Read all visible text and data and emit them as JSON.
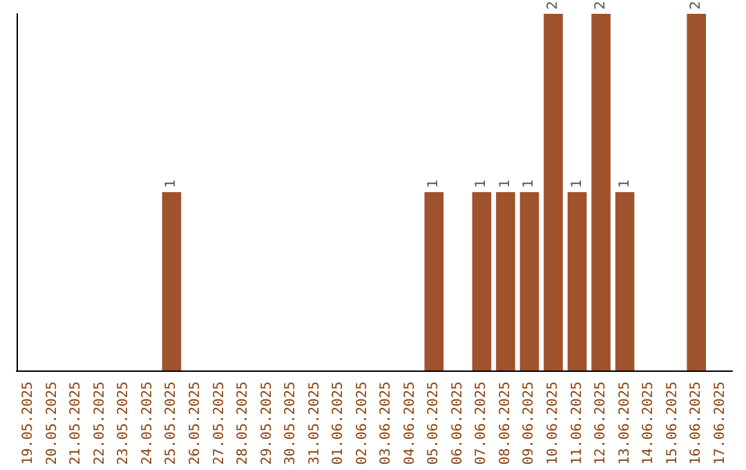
{
  "chart_data": {
    "type": "bar",
    "categories": [
      "19.05.2025",
      "20.05.2025",
      "21.05.2025",
      "22.05.2025",
      "23.05.2025",
      "24.05.2025",
      "25.05.2025",
      "26.05.2025",
      "27.05.2025",
      "28.05.2025",
      "29.05.2025",
      "30.05.2025",
      "31.05.2025",
      "01.06.2025",
      "02.06.2025",
      "03.06.2025",
      "04.06.2025",
      "05.06.2025",
      "06.06.2025",
      "07.06.2025",
      "08.06.2025",
      "09.06.2025",
      "10.06.2025",
      "11.06.2025",
      "12.06.2025",
      "13.06.2025",
      "14.06.2025",
      "15.06.2025",
      "16.06.2025",
      "17.06.2025"
    ],
    "values": [
      0,
      0,
      0,
      0,
      0,
      0,
      1,
      0,
      0,
      0,
      0,
      0,
      0,
      0,
      0,
      0,
      0,
      1,
      0,
      1,
      1,
      1,
      2,
      1,
      2,
      1,
      0,
      0,
      2,
      0
    ],
    "value_labels": [
      null,
      null,
      null,
      null,
      null,
      null,
      "1",
      null,
      null,
      null,
      null,
      null,
      null,
      null,
      null,
      null,
      null,
      "1",
      null,
      "1",
      "1",
      "1",
      "2",
      "1",
      "2",
      "1",
      null,
      null,
      "2",
      null
    ],
    "color": "#a0522d",
    "tick_labels": "x"
  }
}
